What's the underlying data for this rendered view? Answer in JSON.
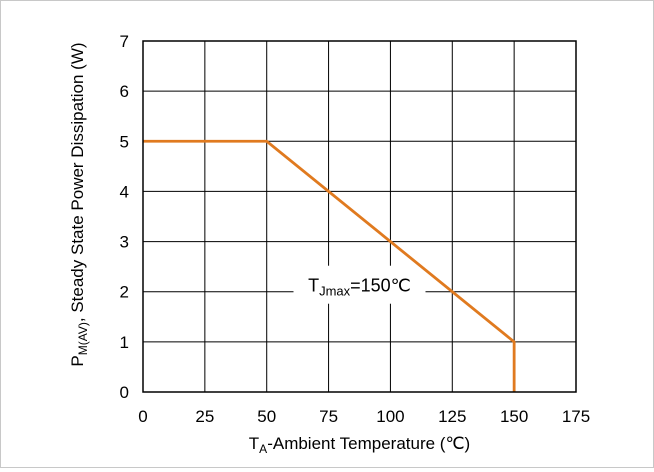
{
  "chart_data": {
    "type": "line",
    "xlabel": {
      "main": "T",
      "sub": "A",
      "rest": "-Ambient Temperature (℃)"
    },
    "ylabel": {
      "main": "P",
      "sub": "M(AV)",
      "rest": ", Steady State Power Dissipation (W)"
    },
    "xlim": [
      0,
      175
    ],
    "ylim": [
      0,
      7
    ],
    "x_ticks": [
      "0",
      "25",
      "50",
      "75",
      "100",
      "125",
      "150",
      "175"
    ],
    "y_ticks": [
      "0",
      "1",
      "2",
      "3",
      "4",
      "5",
      "6",
      "7"
    ],
    "grid": true,
    "series": [
      {
        "color": "#e07a1f",
        "x": [
          0,
          50,
          150,
          150
        ],
        "y": [
          5,
          5,
          1,
          0
        ]
      }
    ],
    "annotation": {
      "main": "T",
      "sub": "Jmax",
      "rest": "=150℃",
      "x": 87.5,
      "y": 2.0
    }
  }
}
